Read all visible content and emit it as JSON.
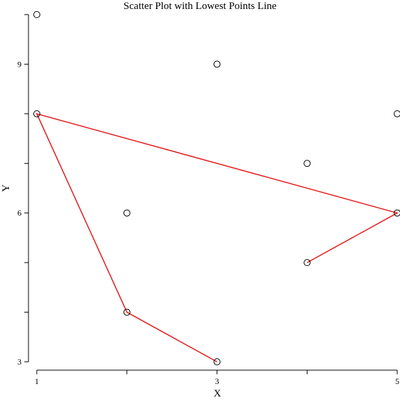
{
  "chart_data": {
    "type": "scatter",
    "title": "Scatter Plot with Lowest Points Line",
    "xlabel": "X",
    "ylabel": "Y",
    "xlim": [
      1,
      5
    ],
    "ylim": [
      3,
      10
    ],
    "x_ticks": [
      1,
      2,
      3,
      4,
      5
    ],
    "x_tick_labels": [
      "1",
      "",
      "3",
      "",
      "5"
    ],
    "y_ticks": [
      3,
      4,
      5,
      6,
      7,
      8,
      9,
      10
    ],
    "y_tick_labels": [
      "3",
      "",
      "",
      "6",
      "",
      "",
      "9",
      ""
    ],
    "grid": false,
    "series": [
      {
        "type": "scatter",
        "points": [
          {
            "x": 1,
            "y": 10
          },
          {
            "x": 1,
            "y": 8
          },
          {
            "x": 2,
            "y": 6
          },
          {
            "x": 2,
            "y": 4
          },
          {
            "x": 3,
            "y": 9
          },
          {
            "x": 3,
            "y": 3
          },
          {
            "x": 4,
            "y": 7
          },
          {
            "x": 4,
            "y": 5
          },
          {
            "x": 5,
            "y": 8
          },
          {
            "x": 5,
            "y": 6
          }
        ]
      },
      {
        "type": "line",
        "color": "#e41a1c",
        "points": [
          {
            "x": 3,
            "y": 3
          },
          {
            "x": 2,
            "y": 4
          },
          {
            "x": 1,
            "y": 8
          },
          {
            "x": 5,
            "y": 6
          },
          {
            "x": 4,
            "y": 5
          }
        ]
      }
    ]
  }
}
